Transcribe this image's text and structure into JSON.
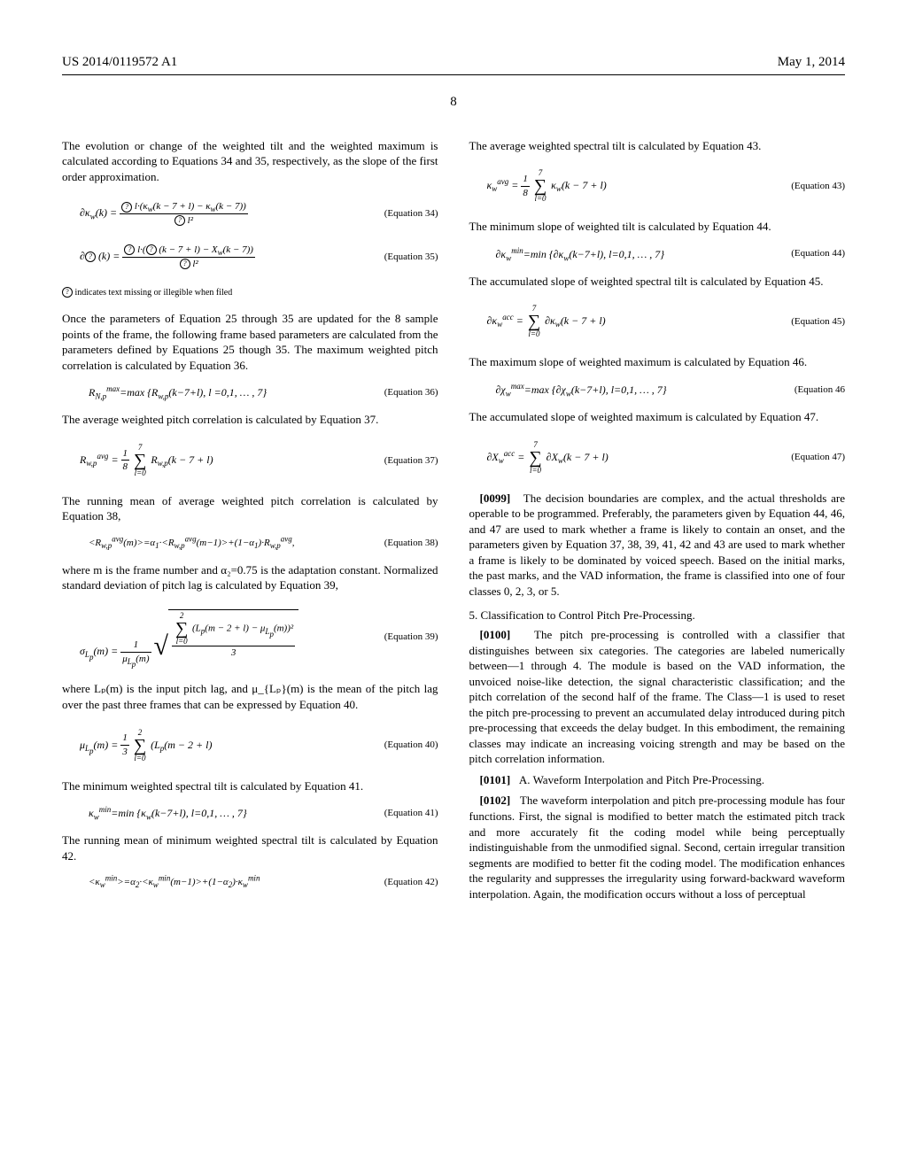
{
  "header": {
    "pub_number": "US 2014/0119572 A1",
    "pub_date": "May 1, 2014",
    "page_number": "8"
  },
  "left": {
    "p1": "The evolution or change of the weighted tilt and the weighted maximum is calculated according to Equations 34 and 35, respectively, as the slope of the first order approximation.",
    "eq34_label": "(Equation 34)",
    "eq35_label": "(Equation 35)",
    "footnote": "indicates text missing or illegible when filed",
    "p2": "Once the parameters of Equation 25 through 35 are updated for the 8 sample points of the frame, the following frame based parameters are calculated from the parameters defined by Equations 25 though 35. The maximum weighted pitch correlation is calculated by Equation 36.",
    "eq36_formula": "R_{N,p}^{max} = max {R_{w,p}(k−7+l), l=0,1, … , 7}",
    "eq36_label": "(Equation 36)",
    "p3": "The average weighted pitch correlation is calculated by Equation 37.",
    "eq37_label": "(Equation 37)",
    "p4": "The running mean of average weighted pitch correlation is calculated by Equation 38,",
    "eq38_formula": "<R_{w,p}^{avg}(m)> = α₁·<R_{w,p}^{avg}(m−1)> + (1−α₁)·R_{w,p}^{avg},",
    "eq38_label": "(Equation 38)",
    "p5": "where m is the frame number and α₂=0.75 is the adaptation constant. Normalized standard deviation of pitch lag is calculated by Equation 39,",
    "eq39_label": "(Equation 39)",
    "p6": "where Lₚ(m) is the input pitch lag, and μ_{Lₚ}(m) is the mean of the pitch lag over the past three frames that can be expressed by Equation 40.",
    "eq40_label": "(Equation 40)",
    "p7": "The minimum weighted spectral tilt is calculated by Equation 41.",
    "eq41_formula": "κ_w^{min} = min {κ_w(k−7+l), l=0,1, … , 7}",
    "eq41_label": "(Equation 41)",
    "p8": "The running mean of minimum weighted spectral tilt is calculated by Equation 42.",
    "eq42_formula": "<κ_w^{min}> = α₂·<κ_w^{min}(m−1)> + (1−α₂)·κ_w^{min}",
    "eq42_label": "(Equation 42)"
  },
  "right": {
    "p1": "The average weighted spectral tilt is calculated by Equation 43.",
    "eq43_label": "(Equation 43)",
    "p2": "The minimum slope of weighted tilt is calculated by Equation 44.",
    "eq44_formula": "∂κ_w^{min} = min {∂κ_w(k−7+l), l=0,1, … , 7}",
    "eq44_label": "(Equation 44)",
    "p3": "The accumulated slope of weighted spectral tilt is calculated by Equation 45.",
    "eq45_label": "(Equation 45)",
    "p4": "The maximum slope of weighted maximum is calculated by Equation 46.",
    "eq46_formula": "∂χ_w^{max} = max {∂χ_w(k−7+l), l=0,1, … , 7}",
    "eq46_label": "(Equation 46",
    "p5": "The accumulated slope of weighted maximum is calculated by Equation 47.",
    "eq47_label": "(Equation 47)",
    "para99_num": "[0099]",
    "para99": "The decision boundaries are complex, and the actual thresholds are operable to be programmed. Preferably, the parameters given by Equation 44, 46, and 47 are used to mark whether a frame is likely to contain an onset, and the parameters given by Equation 37, 38, 39, 41, 42 and 43 are used to mark whether a frame is likely to be dominated by voiced speech. Based on the initial marks, the past marks, and the VAD information, the frame is classified into one of four classes 0, 2, 3, or 5.",
    "sec5_head": "5. Classification to Control Pitch Pre-Processing.",
    "para100_num": "[0100]",
    "para100": "The pitch pre-processing is controlled with a classifier that distinguishes between six categories. The categories are labeled numerically between—1 through 4. The module is based on the VAD information, the unvoiced noise-like detection, the signal characteristic classification; and the pitch correlation of the second half of the frame. The Class—1 is used to reset the pitch pre-processing to prevent an accumulated delay introduced during pitch pre-processing that exceeds the delay budget. In this embodiment, the remaining classes may indicate an increasing voicing strength and may be based on the pitch correlation information.",
    "para101_num": "[0101]",
    "para101": "A. Waveform Interpolation and Pitch Pre-Processing.",
    "para102_num": "[0102]",
    "para102": "The waveform interpolation and pitch pre-processing module has four functions. First, the signal is modified to better match the estimated pitch track and more accurately fit the coding model while being perceptually indistinguishable from the unmodified signal. Second, certain irregular transition segments are modified to better fit the coding model. The modification enhances the regularity and suppresses the irregularity using forward-backward waveform interpolation. Again, the modification occurs without a loss of perceptual"
  }
}
